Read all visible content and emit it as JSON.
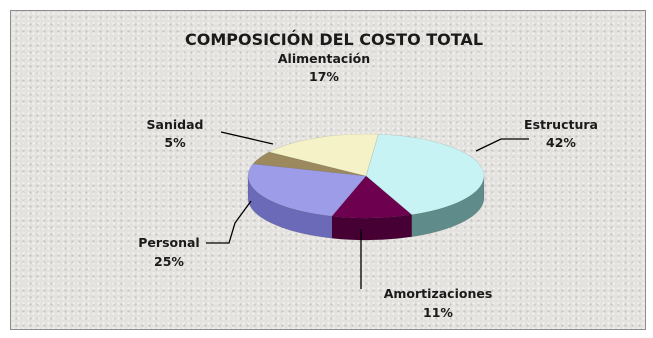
{
  "chart_data": {
    "type": "pie",
    "title": "COMPOSICIÓN DEL COSTO TOTAL",
    "slices": [
      {
        "name": "Estructura",
        "value": 42,
        "label": "42%",
        "color": "#c7f3f4",
        "side": "#5f8c8a"
      },
      {
        "name": "Amortizaciones",
        "value": 11,
        "label": "11%",
        "color": "#6e0050",
        "side": "#470033"
      },
      {
        "name": "Personal",
        "value": 25,
        "label": "25%",
        "color": "#9c9ce8",
        "side": "#6a6ab8"
      },
      {
        "name": "Sanidad",
        "value": 5,
        "label": "5%",
        "color": "#9c8a5e",
        "side": "#6c5e3a"
      },
      {
        "name": "Alimentación",
        "value": 17,
        "label": "17%",
        "color": "#f4f2c6",
        "side": "#c6c296"
      }
    ],
    "legend": "none"
  }
}
